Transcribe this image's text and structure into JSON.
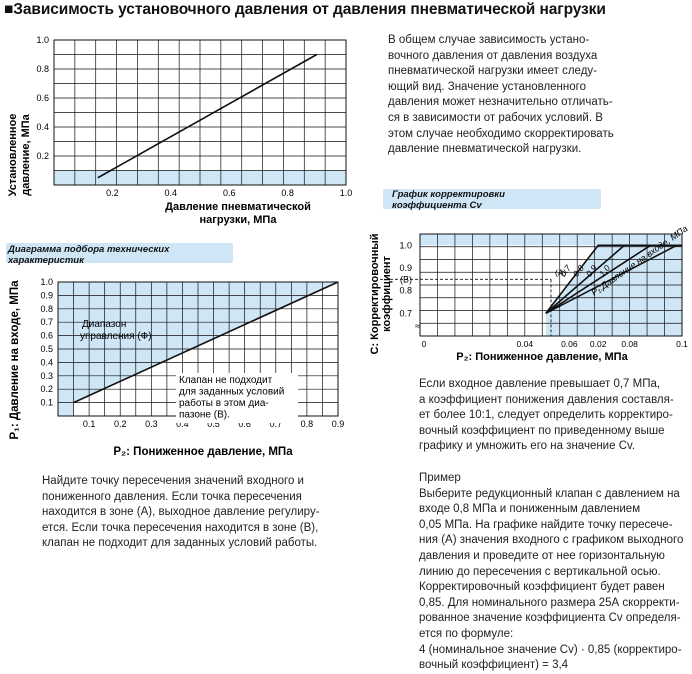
{
  "title": "■Зависимость установочного давления от давления пневматической нагрузки",
  "intro_text": "В общем случае зависимость устано-\nвочного давления от давления воздуха\nпневматической нагрузки имеет следу-\nющий вид. Значение установленного\nдавления может незначительно отличать-\nся в зависимости от рабочих условий. В\nэтом случае необходимо скорректировать\nдавление пневматической нагрузки.",
  "colors": {
    "fill": "#cfe6f6",
    "line": "#111111",
    "banner": "#cfe6f6"
  },
  "chart_data": [
    {
      "id": "set-pressure-vs-pilot",
      "type": "line",
      "title": "",
      "xlabel": "Давление пневматической\nнагрузки, МПа",
      "ylabel": "Установленное\nдавление, МПа",
      "xlim": [
        0,
        1.0
      ],
      "ylim": [
        0,
        1.0
      ],
      "xticks": [
        "0.2",
        "0.4",
        "0.6",
        "0.8",
        "1.0"
      ],
      "yticks": [
        "0.2",
        "0.4",
        "0.6",
        "0.8",
        "1.0"
      ],
      "grid": true,
      "series": [
        {
          "x": [
            0.15,
            0.9
          ],
          "y": [
            0.05,
            0.9
          ]
        }
      ]
    },
    {
      "id": "selection-diagram",
      "type": "area",
      "banner": "Диаграмма подбора технических\nхарактеристик",
      "xlabel": "P₂: Пониженное давление, МПа",
      "ylabel": "P₁: Давление на входе, МПа",
      "xlim": [
        0,
        0.9
      ],
      "ylim": [
        0,
        1.0
      ],
      "xticks": [
        "0.1",
        "0.2",
        "0.3",
        "0.4",
        "0.5",
        "0.6",
        "0.7",
        "0.8",
        "0.9"
      ],
      "yticks": [
        "0.1",
        "0.2",
        "0.3",
        "0.4",
        "0.5",
        "0.6",
        "0.7",
        "0.8",
        "0.9",
        "1.0"
      ],
      "grid": true,
      "boundary": {
        "x": [
          0.05,
          0.9
        ],
        "y": [
          0.1,
          1.0
        ]
      },
      "zone_a_label": "Диапазон\nуправления (Ф)",
      "zone_b_label": "Клапан не подходит\nдля заданных условий\nработы в этом диа-\nпазоне (В)."
    },
    {
      "id": "cv-correction",
      "type": "line",
      "banner": "График корректировки\nкоэффициента Cv",
      "xlabel": "P₂: Пониженное давление, МПа",
      "ylabel": "С: Корректировочный\nкоэффициент",
      "xlim": [
        0,
        0.1
      ],
      "ylim": [
        0.6,
        1.05
      ],
      "xticks": [
        "0",
        "0.04",
        "0.06",
        "0.02",
        "0.08",
        "0.1"
      ],
      "yticks": [
        "0.7",
        "0.8",
        "(B)",
        "0.9",
        "1.0"
      ],
      "grid": true,
      "series": [
        {
          "name": "0.7",
          "x": [
            0.048,
            0.068,
            0.1
          ],
          "y": [
            0.7,
            1.0,
            1.0
          ]
        },
        {
          "name": "0.8",
          "x": [
            0.048,
            0.078,
            0.1
          ],
          "y": [
            0.7,
            1.0,
            1.0
          ]
        },
        {
          "name": "0.9",
          "x": [
            0.048,
            0.088,
            0.1
          ],
          "y": [
            0.7,
            1.0,
            1.0
          ]
        },
        {
          "name": "1.0",
          "x": [
            0.048,
            0.098,
            0.1
          ],
          "y": [
            0.7,
            1.0,
            1.0
          ]
        }
      ],
      "curve_label": "P₁:Давление на входе, МПа",
      "point_label": "(A)",
      "b_label": "(B)",
      "b_value": 0.85,
      "example_x": 0.05
    }
  ],
  "left_text": "Найдите точку пересечения значений входного и\nпониженного давления. Если точка пересечения\nнаходится в зоне (А), выходное давление регулиру-\nется. Если точка пересечения находится в зоне (В),\nклапан не подходит для заданных условий работы.",
  "right_text": "Если входное давление превышает 0,7 МПа,\nа коэффициент понижения давления составля-\nет более 10:1, следует определить корректиро-\nвочный коэффициент по приведенному выше\nграфику и умножить его на значение Cv.",
  "example_text": "Пример\nВыберите редукционный клапан с давлением на\nвходе 0,8 МПа и пониженным давлением\n0,05 МПа. На графике найдите точку пересече-\nния (А) значения входного с графиком выходного\nдавления и проведите от нее горизонтальную\nлинию до пересечения с вертикальной осью.\nКорректировочный коэффициент будет равен\n0,85. Для номинального размера 25А скорректи-\nрованное значение коэффициента Cv определя-\nется по формуле:\n4 (номинальное значение Cv) · 0,85 (корректиро-\nвочный коэффициент) = 3,4"
}
